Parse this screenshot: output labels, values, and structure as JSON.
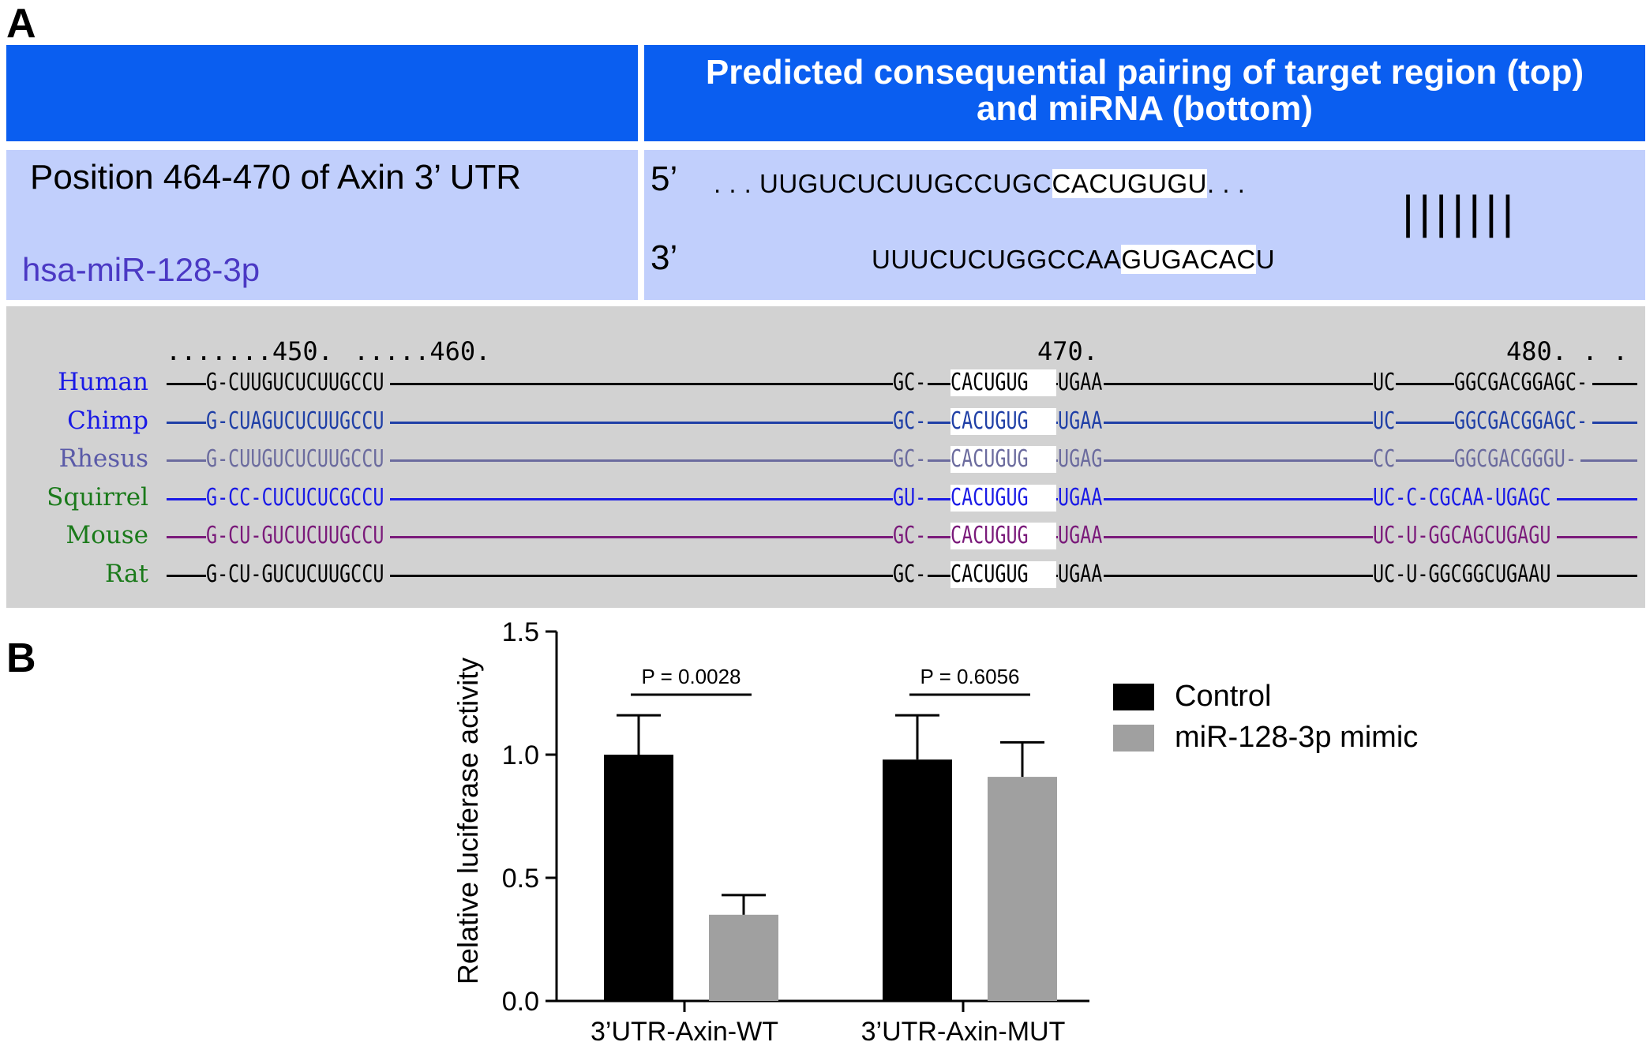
{
  "panelA": {
    "label": "A",
    "header_title_line1": "Predicted consequential pairing of target region (top)",
    "header_title_line2": "and miRNA (bottom)",
    "position_text": "Position 464-470 of Axin 3’ UTR",
    "mirna_name": "hsa-miR-128-3p",
    "prime5": "5’",
    "prime3": "3’",
    "target_dots_left": ". . .",
    "target_seq_pre": "UUGUCUCUUGCCUGC",
    "target_seq_hl": "CACUGUGU",
    "target_dots_right": ". . .",
    "pairing_bars": "|||||||",
    "mirna_seq_pre": "UUUCUCUGGCCAA",
    "mirna_seq_hl": "GUGACAC",
    "mirna_seq_post": "U",
    "alignment": {
      "ruler": [
        ".......450.",
        ".....460.",
        "470.",
        "480. . . . ."
      ],
      "species": [
        {
          "name": "Human",
          "color": "#1a1ae6",
          "line_color": "#000000",
          "seg1": "G-CUUGUCUCUUGCCU",
          "seg2a": "GC-",
          "seg2hl": "CACUGUG",
          "seg2b": "UGAA",
          "seg3": "UC",
          "seg4": "GGCGACGGAGC-"
        },
        {
          "name": "Chimp",
          "color": "#1a1ae6",
          "line_color": "#1f3fa6",
          "seg1": "G-CUAGUCUCUUGCCU",
          "seg2a": "GC-",
          "seg2hl": "CACUGUG",
          "seg2b": "UGAA",
          "seg3": "UC",
          "seg4": "GGCGACGGAGC-"
        },
        {
          "name": "Rhesus",
          "color": "#5a5aa8",
          "line_color": "#6b6b9e",
          "seg1": "G-CUUGUCUCUUGCCU",
          "seg2a": "GC-",
          "seg2hl": "CACUGUG",
          "seg2b": "UGAG",
          "seg3": "CC",
          "seg4": "GGCGACGGGU-"
        },
        {
          "name": "Squirrel",
          "color": "#1a7a1a",
          "line_color": "#1a1ae6",
          "seg1": "G-CC-CUCUCUCGCCU",
          "seg2a": "GU-",
          "seg2hl": "CACUGUG",
          "seg2b": "UGAA",
          "seg3": "UC-C-CGCAA-UGAGC",
          "seg4": "-"
        },
        {
          "name": "Mouse",
          "color": "#1a7a1a",
          "line_color": "#7a1a7a",
          "seg1": "G-CU-GUCUCUUGCCU",
          "seg2a": "GC-",
          "seg2hl": "CACUGUG",
          "seg2b": "UGAA",
          "seg3": "UC-U-GGCAGCUGAGU",
          "seg4": "-"
        },
        {
          "name": "Rat",
          "color": "#1a7a1a",
          "line_color": "#000000",
          "seg1": "G-CU-GUCUCUUGCCU",
          "seg2a": "GC-",
          "seg2hl": "CACUGUG",
          "seg2b": "UGAA",
          "seg3": "UC-U-GGCGGCUGAAU",
          "seg4": "-"
        }
      ]
    }
  },
  "panelB": {
    "label": "B",
    "legend": [
      {
        "label": "Control",
        "color": "#000000"
      },
      {
        "label": "miR-128-3p mimic",
        "color": "#a0a0a0"
      }
    ],
    "annotations": [
      "P = 0.0028",
      "P = 0.6056"
    ]
  },
  "chart_data": {
    "type": "bar",
    "ylabel": "Relative luciferase activity",
    "xlabel": "",
    "ylim": [
      0,
      1.5
    ],
    "yticks": [
      "0.0",
      "0.5",
      "1.0",
      "1.5"
    ],
    "categories": [
      "3’UTR-Axin-WT",
      "3’UTR-Axin-MUT"
    ],
    "series": [
      {
        "name": "Control",
        "color": "#000000",
        "values": [
          1.0,
          0.98
        ],
        "errors": [
          0.16,
          0.18
        ]
      },
      {
        "name": "miR-128-3p mimic",
        "color": "#a0a0a0",
        "values": [
          0.35,
          0.91
        ],
        "errors": [
          0.08,
          0.14
        ]
      }
    ],
    "significance": [
      {
        "category": "3’UTR-Axin-WT",
        "label": "P = 0.0028"
      },
      {
        "category": "3’UTR-Axin-MUT",
        "label": "P = 0.6056"
      }
    ]
  }
}
